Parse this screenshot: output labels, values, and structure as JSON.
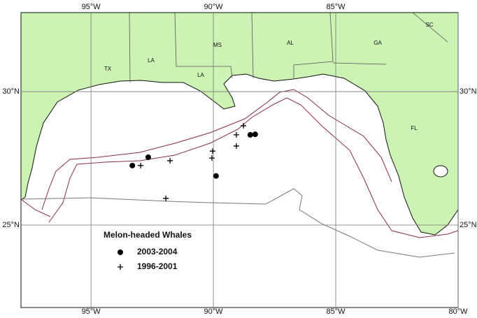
{
  "map": {
    "xlim": [
      -97.86,
      -80
    ],
    "ylim": [
      21.91,
      32.96
    ],
    "xticks": [
      {
        "value": -95,
        "label": "95°W"
      },
      {
        "value": -90,
        "label": "90°W"
      },
      {
        "value": -85,
        "label": "85°W"
      },
      {
        "value": -80,
        "label": "80°W"
      }
    ],
    "yticks": [
      {
        "value": 25,
        "label": "25°N"
      },
      {
        "value": 30,
        "label": "30°N"
      }
    ],
    "states": [
      "TX",
      "LA",
      "MS",
      "LA",
      "AL",
      "GA",
      "SC",
      "FL"
    ],
    "legend_title": "Melon-headed Whales",
    "series": [
      {
        "name": "2003-2004",
        "marker": "dot",
        "color": "#000000",
        "x": [
          -93.31,
          -92.66,
          -89.89,
          -88.49,
          -88.29
        ],
        "y": [
          27.23,
          27.54,
          26.84,
          28.38,
          28.4
        ]
      },
      {
        "name": "1996-2001",
        "marker": "cross",
        "color": "#000000",
        "x": [
          -92.97,
          -91.77,
          -91.94,
          -90.06,
          -90.03,
          -89.06,
          -89.06,
          -88.77
        ],
        "y": [
          27.23,
          27.41,
          26.0,
          27.51,
          27.77,
          28.38,
          27.96,
          28.72
        ]
      }
    ]
  }
}
